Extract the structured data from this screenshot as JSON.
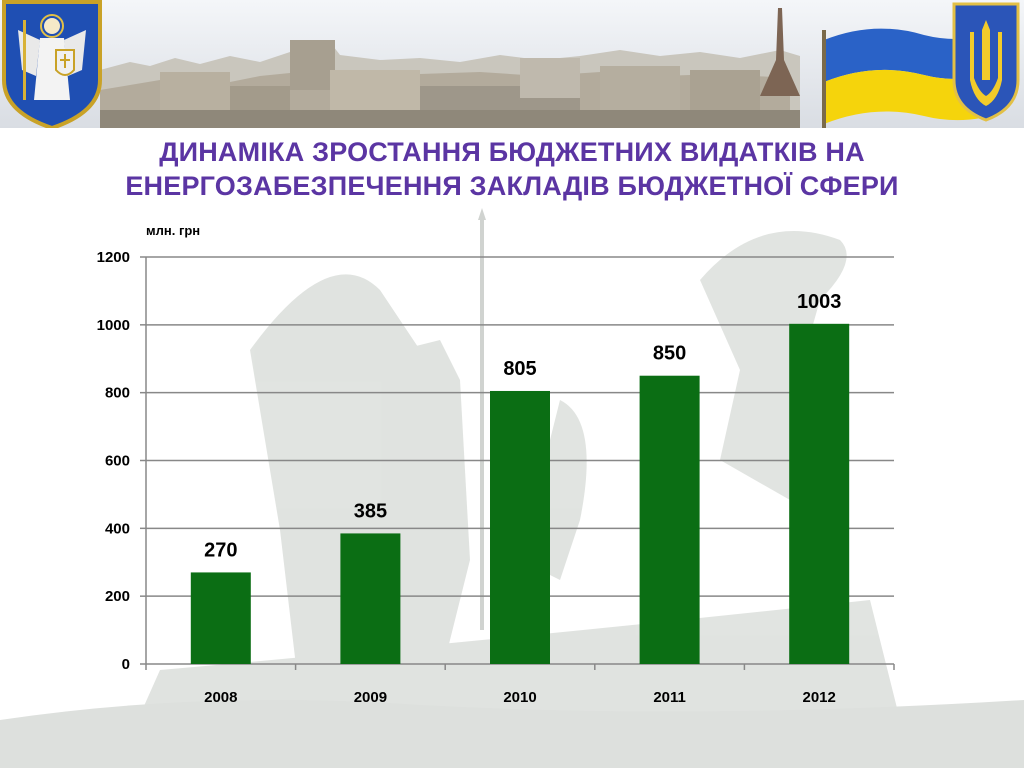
{
  "title": {
    "line1": "ДИНАМІКА ЗРОСТАННЯ БЮДЖЕТНИХ ВИДАТКІВ НА",
    "line2": "ЕНЕРГОЗАБЕЗПЕЧЕННЯ ЗАКЛАДІВ БЮДЖЕТНОЇ СФЕРИ"
  },
  "unit": "млн. грн",
  "colors": {
    "title": "#5b35a3",
    "bar": "#0b6e14",
    "grid": "#888888",
    "flag_blue": "#2a62c7",
    "flag_yellow": "#f5d40c"
  },
  "icons": [
    "kyiv-coat-of-arms-icon",
    "ukraine-trident-icon",
    "ukraine-flag-icon"
  ],
  "chart_data": {
    "type": "bar",
    "categories": [
      "2008",
      "2009",
      "2010",
      "2011",
      "2012"
    ],
    "values": [
      270,
      385,
      805,
      850,
      1003
    ],
    "data_labels": [
      "270",
      "385",
      "805",
      "850",
      "1003"
    ],
    "yticks": [
      "0",
      "200",
      "400",
      "600",
      "800",
      "1000",
      "1200"
    ],
    "ylim": [
      0,
      1200
    ],
    "ylabel": "млн. грн",
    "xlabel": "",
    "grid": true,
    "legend": "none"
  }
}
